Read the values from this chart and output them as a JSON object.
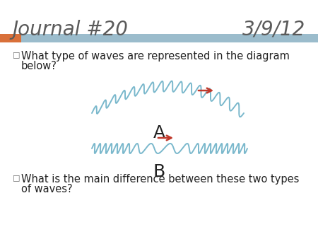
{
  "title_left": "Journal #20",
  "title_right": "3/9/12",
  "title_fontsize": 20,
  "title_color": "#5a5a5a",
  "bar_color_orange": "#d9703a",
  "bar_color_blue": "#9bbccc",
  "bullet1_line1": "  What type of waves are represented in the diagram",
  "bullet1_line2": "  below?",
  "bullet2_line1": "  What is the main difference between these two types",
  "bullet2_line2": "  of waves?",
  "bullet_fontsize": 10.5,
  "label_A": "A",
  "label_B": "B",
  "wave_color": "#7ab8cc",
  "arrow_color": "#c0392b",
  "background_color": "#ffffff"
}
